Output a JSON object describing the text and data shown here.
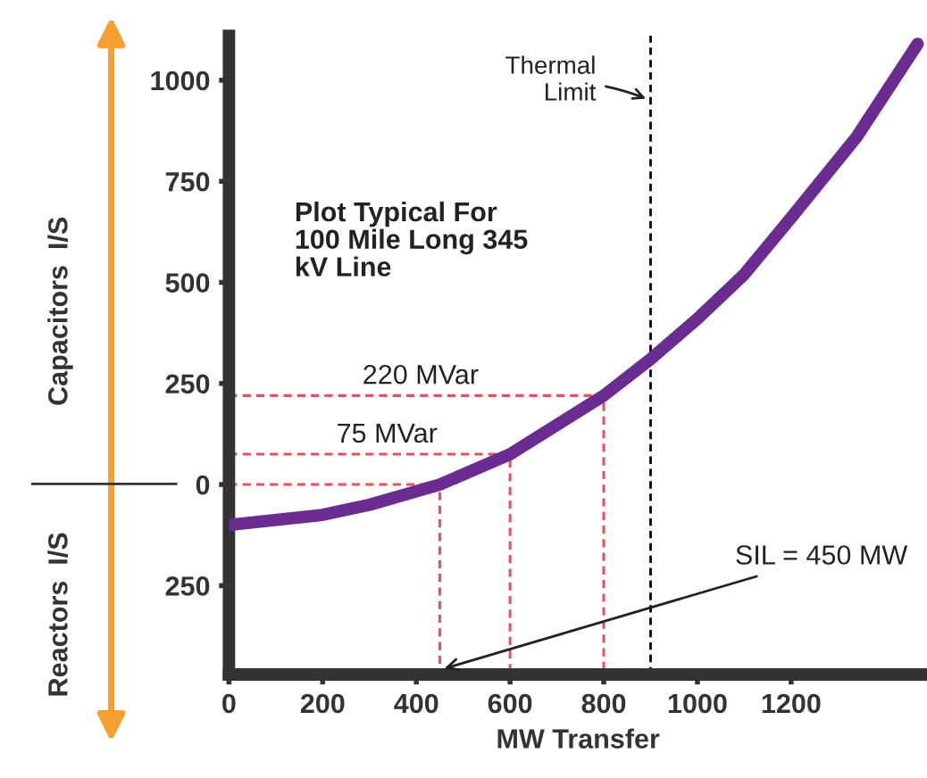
{
  "chart_data": {
    "type": "line",
    "xlabel": "MW Transfer",
    "x": [
      0,
      200,
      300,
      450,
      600,
      800,
      900,
      1000,
      1100,
      1200,
      1340,
      1470
    ],
    "series": [
      {
        "color": "#6a2c91",
        "values": [
          -100,
          -75,
          -50,
          0,
          75,
          220,
          310,
          410,
          520,
          660,
          860,
          1090
        ]
      },
      {
        "color": "#e8505b",
        "line_style": "dashed",
        "x": [
          0,
          800,
          800
        ],
        "values": [
          220,
          220,
          -470
        ]
      },
      {
        "color": "#e8505b",
        "line_style": "dashed",
        "x": [
          0,
          600,
          600
        ],
        "values": [
          75,
          75,
          -470
        ]
      },
      {
        "color": "#e8505b",
        "line_style": "dashed",
        "x": [
          0,
          450,
          450
        ],
        "values": [
          0,
          0,
          -470
        ]
      }
    ],
    "xlim": [
      0,
      1490
    ],
    "ylim": [
      -470,
      1110
    ],
    "xticks": [
      0,
      200,
      400,
      600,
      800,
      1000,
      1200
    ],
    "yticks": [
      {
        "value": -250,
        "label": "250"
      },
      0,
      250,
      500,
      750,
      1000
    ],
    "ref_lines": [
      {
        "axis": "x",
        "value": 900,
        "label": "Thermal\nLimit",
        "color": "#000000",
        "line_style": "dashed"
      }
    ],
    "annotations": [
      "220 MVar",
      "75 MVar",
      {
        "text": "SIL = 450 MW",
        "x": 460,
        "y": -455
      },
      "Plot Typical For\n100 Mile Long 345\nkV Line",
      "Capacitors  I/S",
      "Reactors  I/S"
    ],
    "grid": false,
    "legend": false,
    "marker": "none",
    "line_style": "solid"
  }
}
